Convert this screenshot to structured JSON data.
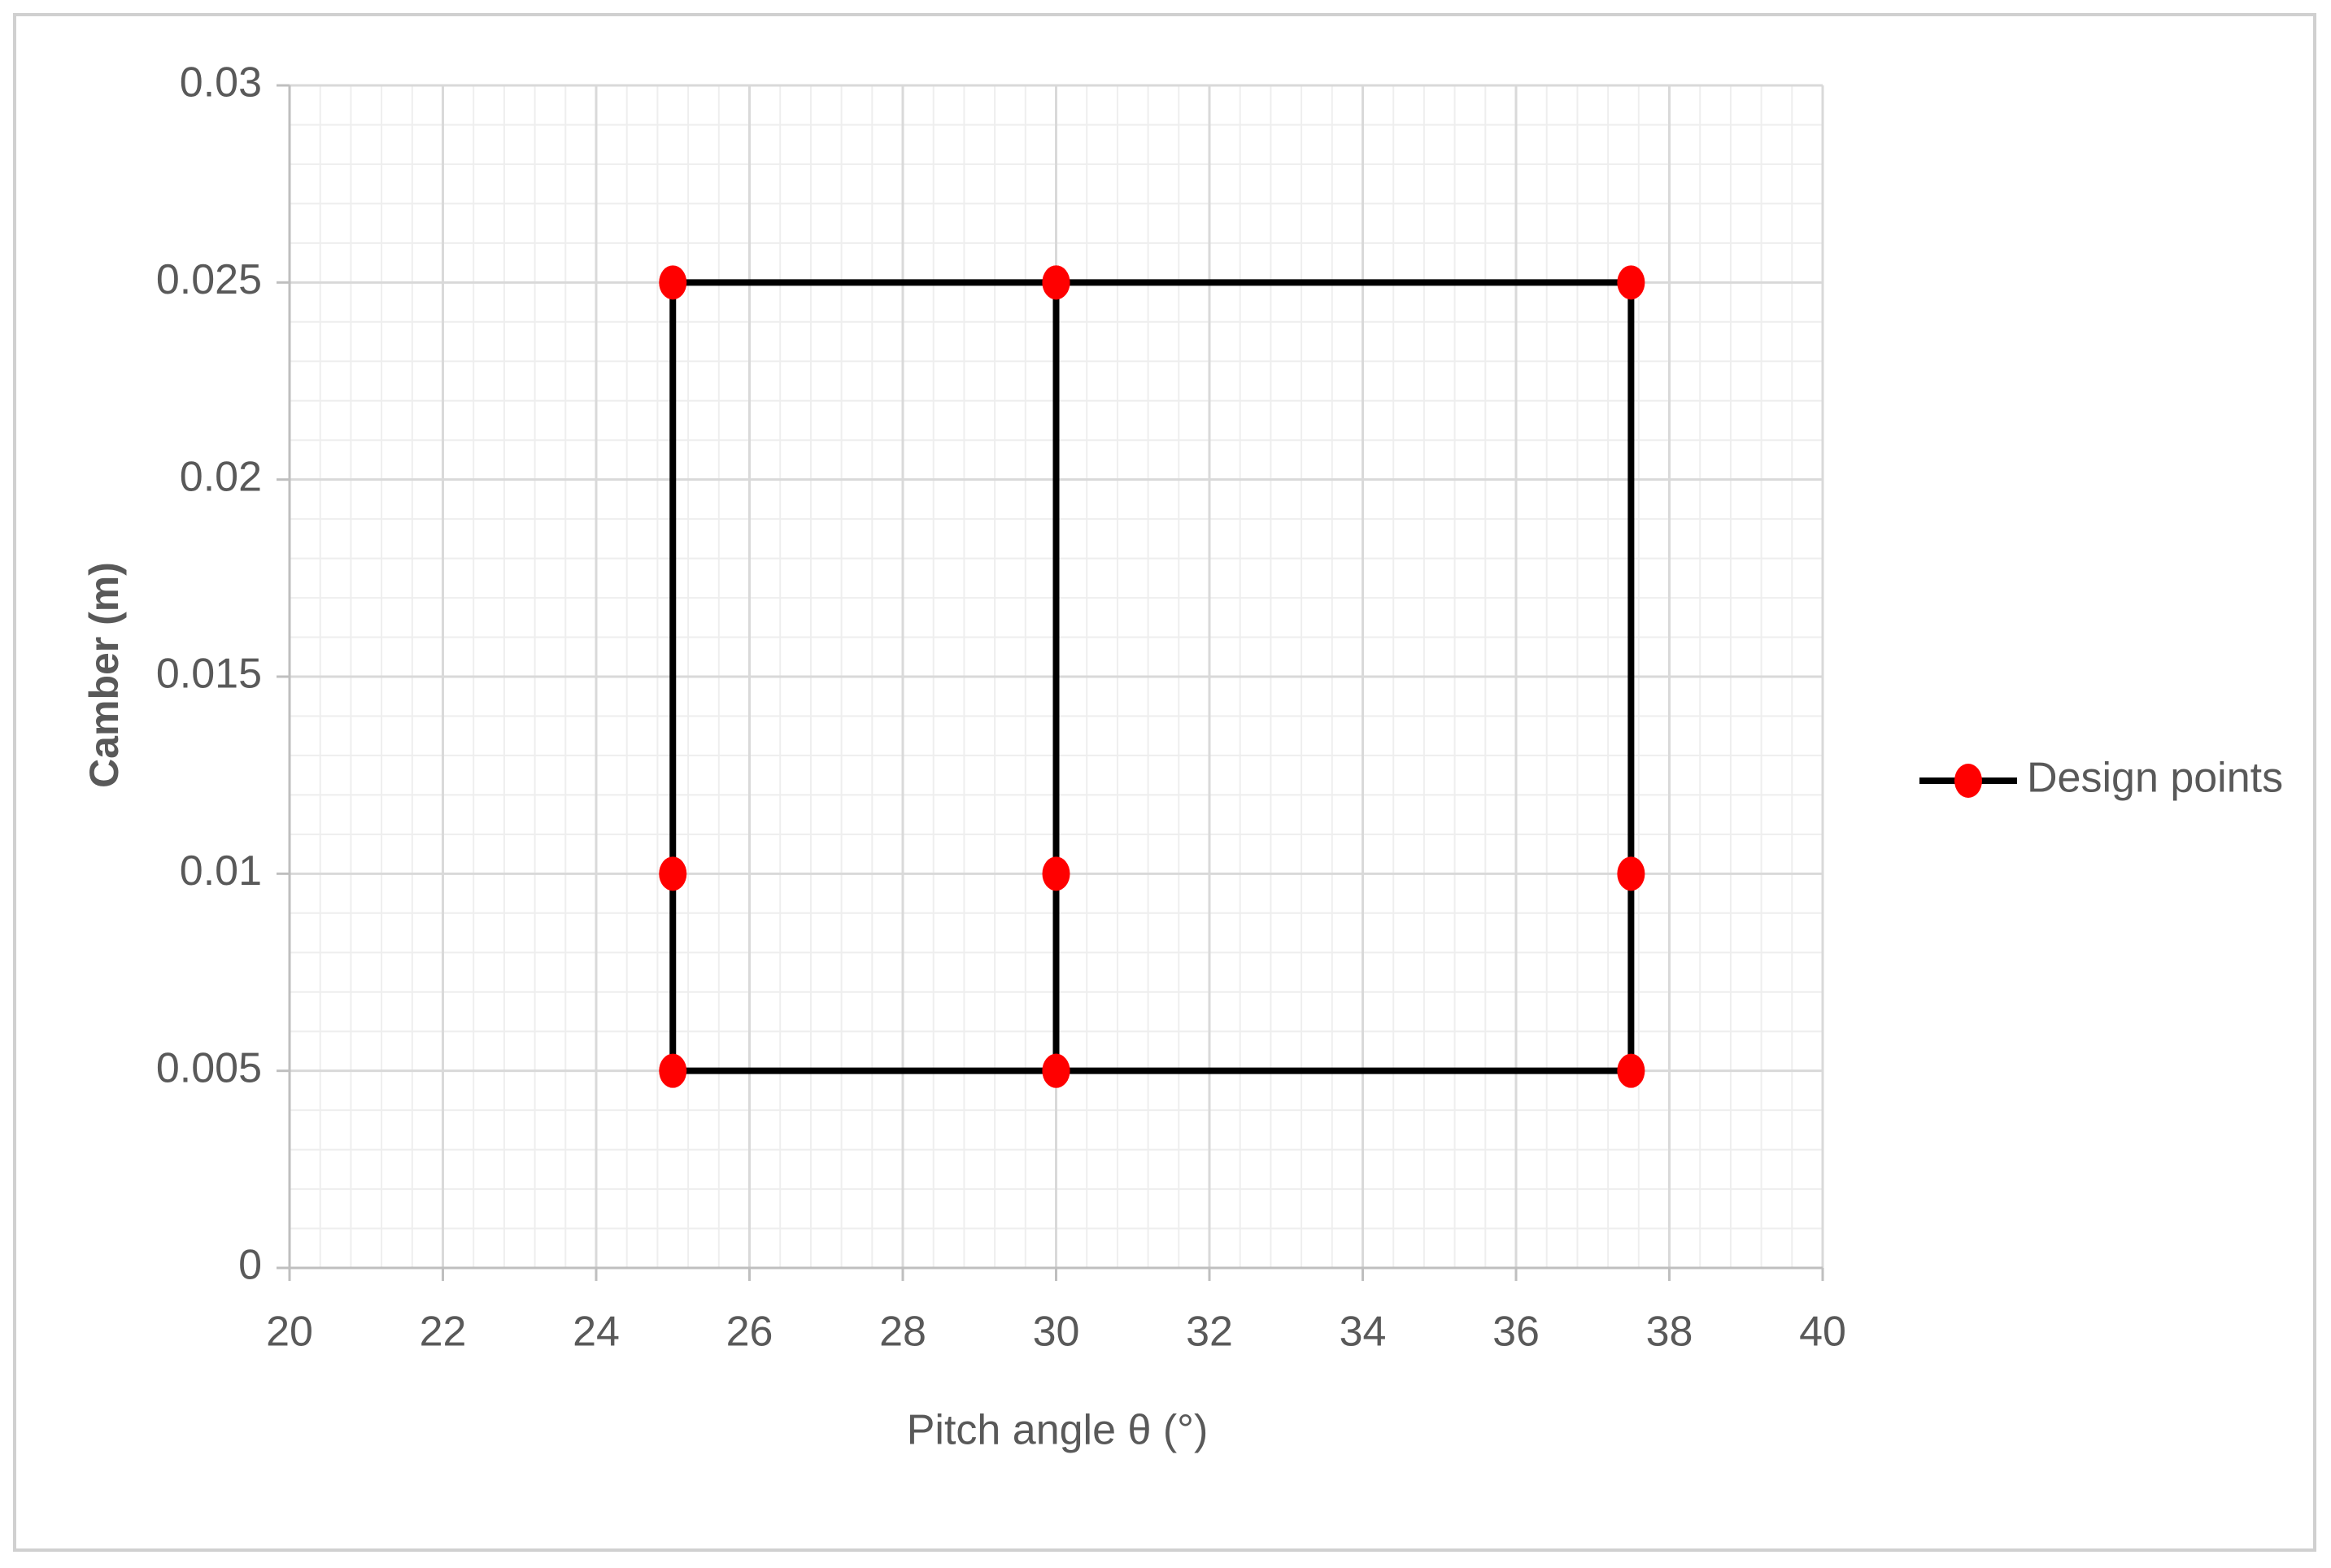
{
  "chart_data": {
    "type": "scatter-line",
    "x_label": "Pitch angle θ (°)",
    "y_label": "Camber (m)",
    "series": [
      {
        "name": "Design points",
        "line_color": "#000000",
        "marker_color": "#ff0000",
        "x": [
          30,
          25,
          25,
          25,
          30,
          37.5,
          37.5,
          37.5,
          30,
          30,
          30
        ],
        "values": [
          0.025,
          0.025,
          0.01,
          0.005,
          0.005,
          0.005,
          0.01,
          0.025,
          0.025,
          0.01,
          0.005
        ]
      }
    ],
    "xlim": [
      20,
      40
    ],
    "xticks": [
      20,
      22,
      24,
      26,
      28,
      30,
      32,
      34,
      36,
      38,
      40
    ],
    "ylim": [
      0,
      0.03
    ],
    "yticks": [
      0,
      0.005,
      0.01,
      0.015,
      0.02,
      0.025,
      0.03
    ],
    "grid": true,
    "minor_grid": true,
    "legend": "right"
  }
}
